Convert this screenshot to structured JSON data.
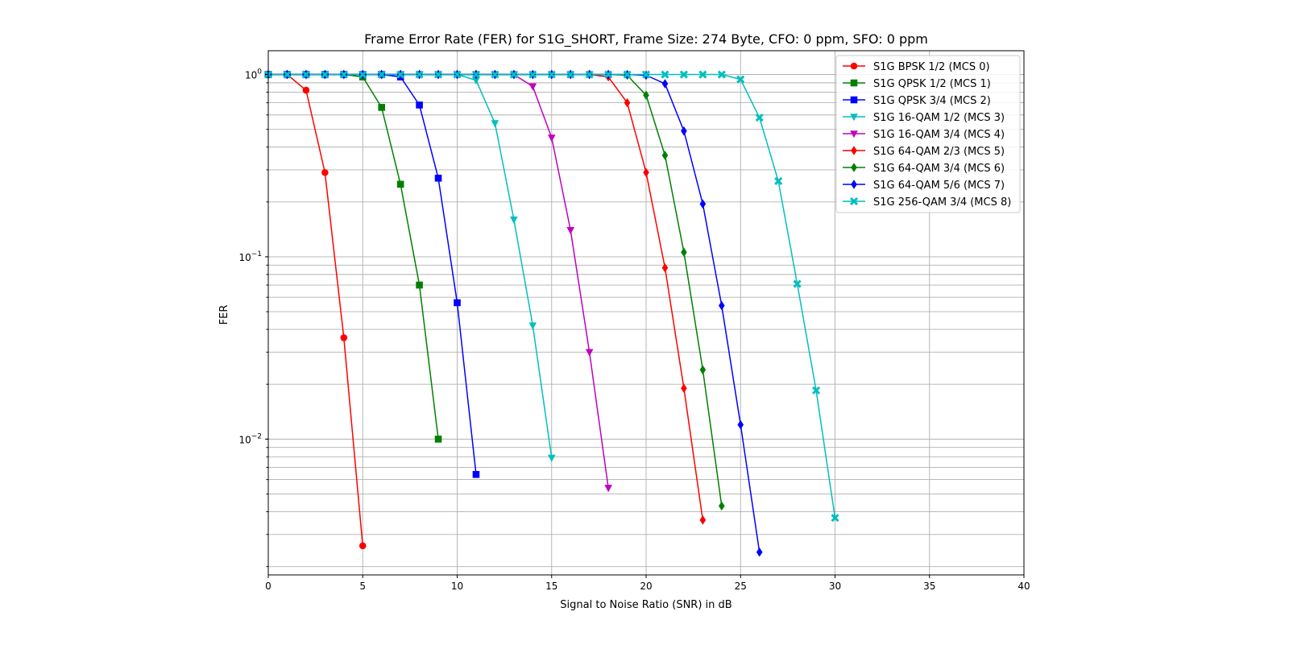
{
  "chart_data": {
    "type": "line",
    "title": "Frame Error Rate (FER) for S1G_SHORT, Frame Size: 274 Byte, CFO: 0 ppm, SFO: 0 ppm",
    "xlabel": "Signal to Noise Ratio (SNR) in dB",
    "ylabel": "FER",
    "xlim": [
      0,
      40
    ],
    "ylim": [
      0.0018,
      1.35
    ],
    "yscale": "log",
    "grid": true,
    "legend_position": "top-right",
    "x_ticks": [
      0,
      5,
      10,
      15,
      20,
      25,
      30,
      35,
      40
    ],
    "y_major_ticks": [
      {
        "value": 1,
        "base": "10",
        "exp": "0"
      },
      {
        "value": 0.1,
        "base": "10",
        "exp": "−1"
      },
      {
        "value": 0.01,
        "base": "10",
        "exp": "−2"
      }
    ],
    "series": [
      {
        "name": "S1G BPSK 1/2 (MCS 0)",
        "color": "#ff0000",
        "marker": "circle",
        "x": [
          0,
          1,
          2,
          3,
          4,
          5
        ],
        "y": [
          1.0,
          1.0,
          0.82,
          0.29,
          0.036,
          0.0026
        ]
      },
      {
        "name": "S1G QPSK 1/2 (MCS 1)",
        "color": "#008000",
        "marker": "square",
        "x": [
          0,
          1,
          2,
          3,
          4,
          5,
          6,
          7,
          8,
          9
        ],
        "y": [
          1.0,
          1.0,
          1.0,
          1.0,
          1.0,
          0.97,
          0.66,
          0.25,
          0.07,
          0.01
        ]
      },
      {
        "name": "S1G QPSK 3/4 (MCS 2)",
        "color": "#0000ff",
        "marker": "square",
        "x": [
          0,
          1,
          2,
          3,
          4,
          5,
          6,
          7,
          8,
          9,
          10,
          11
        ],
        "y": [
          1.0,
          1.0,
          1.0,
          1.0,
          1.0,
          1.0,
          1.0,
          0.97,
          0.68,
          0.27,
          0.056,
          0.0064
        ]
      },
      {
        "name": "S1G 16-QAM 1/2 (MCS 3)",
        "color": "#00bfbf",
        "marker": "triangle-down",
        "x": [
          0,
          1,
          2,
          3,
          4,
          5,
          6,
          7,
          8,
          9,
          10,
          11,
          12,
          13,
          14,
          15
        ],
        "y": [
          1.0,
          1.0,
          1.0,
          1.0,
          1.0,
          1.0,
          1.0,
          1.0,
          1.0,
          1.0,
          1.0,
          0.93,
          0.54,
          0.16,
          0.042,
          0.0079
        ]
      },
      {
        "name": "S1G 16-QAM 3/4 (MCS 4)",
        "color": "#bf00bf",
        "marker": "triangle-down",
        "x": [
          0,
          1,
          2,
          3,
          4,
          5,
          6,
          7,
          8,
          9,
          10,
          11,
          12,
          13,
          14,
          15,
          16,
          17,
          18
        ],
        "y": [
          1.0,
          1.0,
          1.0,
          1.0,
          1.0,
          1.0,
          1.0,
          1.0,
          1.0,
          1.0,
          1.0,
          1.0,
          1.0,
          1.0,
          0.86,
          0.45,
          0.14,
          0.03,
          0.0054
        ]
      },
      {
        "name": "S1G 64-QAM 2/3 (MCS 5)",
        "color": "#ff0000",
        "marker": "diamond",
        "x": [
          0,
          1,
          2,
          3,
          4,
          5,
          6,
          7,
          8,
          9,
          10,
          11,
          12,
          13,
          14,
          15,
          16,
          17,
          18,
          19,
          20,
          21,
          22,
          23
        ],
        "y": [
          1.0,
          1.0,
          1.0,
          1.0,
          1.0,
          1.0,
          1.0,
          1.0,
          1.0,
          1.0,
          1.0,
          1.0,
          1.0,
          1.0,
          1.0,
          1.0,
          1.0,
          1.0,
          0.97,
          0.7,
          0.29,
          0.087,
          0.019,
          0.0036
        ]
      },
      {
        "name": "S1G 64-QAM 3/4 (MCS 6)",
        "color": "#008000",
        "marker": "diamond",
        "x": [
          0,
          1,
          2,
          3,
          4,
          5,
          6,
          7,
          8,
          9,
          10,
          11,
          12,
          13,
          14,
          15,
          16,
          17,
          18,
          19,
          20,
          21,
          22,
          23,
          24
        ],
        "y": [
          1.0,
          1.0,
          1.0,
          1.0,
          1.0,
          1.0,
          1.0,
          1.0,
          1.0,
          1.0,
          1.0,
          1.0,
          1.0,
          1.0,
          1.0,
          1.0,
          1.0,
          1.0,
          1.0,
          0.99,
          0.77,
          0.36,
          0.106,
          0.024,
          0.0043
        ]
      },
      {
        "name": "S1G 64-QAM 5/6 (MCS 7)",
        "color": "#0000ff",
        "marker": "diamond",
        "x": [
          0,
          1,
          2,
          3,
          4,
          5,
          6,
          7,
          8,
          9,
          10,
          11,
          12,
          13,
          14,
          15,
          16,
          17,
          18,
          19,
          20,
          21,
          22,
          23,
          24,
          25,
          26
        ],
        "y": [
          1.0,
          1.0,
          1.0,
          1.0,
          1.0,
          1.0,
          1.0,
          1.0,
          1.0,
          1.0,
          1.0,
          1.0,
          1.0,
          1.0,
          1.0,
          1.0,
          1.0,
          1.0,
          1.0,
          1.0,
          0.99,
          0.89,
          0.49,
          0.195,
          0.054,
          0.012,
          0.0024
        ]
      },
      {
        "name": "S1G 256-QAM 3/4 (MCS 8)",
        "color": "#00bfbf",
        "marker": "x",
        "x": [
          0,
          1,
          2,
          3,
          4,
          5,
          6,
          7,
          8,
          9,
          10,
          11,
          12,
          13,
          14,
          15,
          16,
          17,
          18,
          19,
          20,
          21,
          22,
          23,
          24,
          25,
          26,
          27,
          28,
          29,
          30
        ],
        "y": [
          1.0,
          1.0,
          1.0,
          1.0,
          1.0,
          1.0,
          1.0,
          1.0,
          1.0,
          1.0,
          1.0,
          1.0,
          1.0,
          1.0,
          1.0,
          1.0,
          1.0,
          1.0,
          1.0,
          1.0,
          1.0,
          1.0,
          1.0,
          1.0,
          1.0,
          0.94,
          0.58,
          0.26,
          0.071,
          0.0185,
          0.0037
        ]
      }
    ]
  }
}
